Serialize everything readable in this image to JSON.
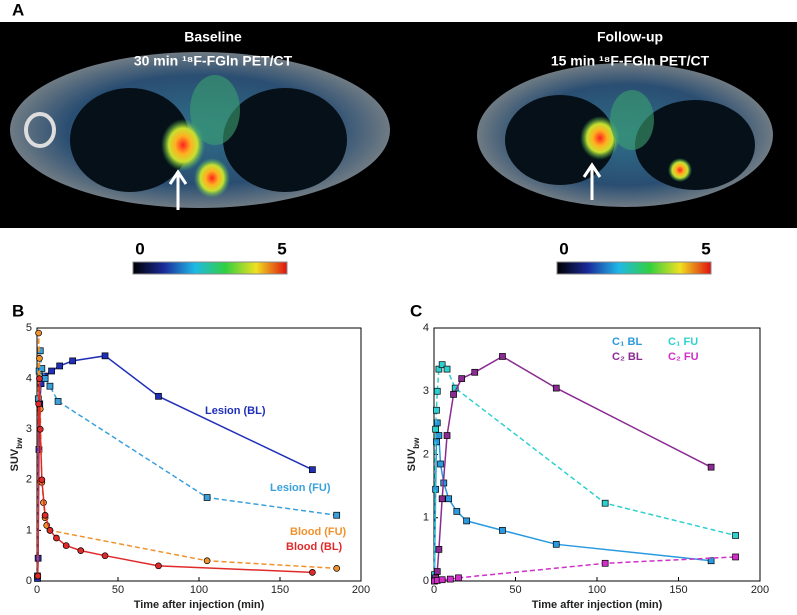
{
  "panel_a": {
    "label": "A",
    "images": [
      {
        "title": "Baseline",
        "subtitle": "30 min ¹⁸F-FGln PET/CT",
        "colorbar_min": "0",
        "colorbar_max": "5"
      },
      {
        "title": "Follow-up",
        "subtitle": "15 min ¹⁸F-FGln PET/CT",
        "colorbar_min": "0",
        "colorbar_max": "5"
      }
    ]
  },
  "chart_data": [
    {
      "type": "line",
      "panel_label": "B",
      "x_label": "Time after injection (min)",
      "y_label": "SUV",
      "y_label_sub": "bw",
      "xlim": [
        0,
        200
      ],
      "ylim": [
        0,
        5
      ],
      "xticks": [
        0,
        50,
        100,
        150,
        200
      ],
      "yticks": [
        0,
        1,
        2,
        3,
        4,
        5
      ],
      "series": [
        {
          "name": "Lesion (BL)",
          "color": "#1f2fb8",
          "line": "solid",
          "marker": "square",
          "x": [
            0.3,
            0.7,
            1.2,
            1.7,
            2.5,
            5,
            9,
            14,
            22,
            42,
            75,
            170
          ],
          "values": [
            0.05,
            0.45,
            2.6,
            3.5,
            3.9,
            4.05,
            4.15,
            4.25,
            4.35,
            4.45,
            3.65,
            2.2
          ]
        },
        {
          "name": "Lesion (FU)",
          "color": "#3aa0dc",
          "line": "dashed",
          "marker": "square",
          "x": [
            0.3,
            0.8,
            1.3,
            2,
            3,
            5,
            8,
            13,
            105,
            185
          ],
          "values": [
            0.1,
            3.6,
            4.15,
            4.55,
            4.2,
            4.0,
            3.85,
            3.55,
            1.65,
            1.3
          ]
        },
        {
          "name": "Blood (FU)",
          "color": "#f0922c",
          "line": "dashed",
          "marker": "circle",
          "x": [
            0.5,
            1,
            1.5,
            2,
            3,
            4,
            5,
            6,
            8,
            105,
            185
          ],
          "values": [
            0.1,
            4.9,
            4.4,
            3.4,
            1.95,
            1.55,
            1.25,
            1.1,
            1.0,
            0.4,
            0.25
          ]
        },
        {
          "name": "Blood (BL)",
          "color": "#e02a2a",
          "line": "solid",
          "marker": "circle",
          "x": [
            0.5,
            1,
            1.5,
            2,
            3,
            5,
            8,
            12,
            18,
            27,
            42,
            75,
            170
          ],
          "values": [
            0.1,
            3.5,
            4.0,
            3.0,
            2.0,
            1.3,
            1.0,
            0.85,
            0.7,
            0.6,
            0.5,
            0.3,
            0.17
          ]
        }
      ]
    },
    {
      "type": "line",
      "panel_label": "C",
      "x_label": "Time after injection (min)",
      "y_label": "SUV",
      "y_label_sub": "bw",
      "xlim": [
        0,
        200
      ],
      "ylim": [
        0,
        4
      ],
      "xticks": [
        0,
        50,
        100,
        150,
        200
      ],
      "yticks": [
        0,
        1,
        2,
        3,
        4
      ],
      "series": [
        {
          "name": "C₁ BL",
          "color": "#2a9ae0",
          "line": "solid",
          "marker": "square",
          "x": [
            0.3,
            1,
            1.5,
            2,
            3,
            4,
            6,
            9,
            14,
            20,
            42,
            75,
            170
          ],
          "values": [
            0.05,
            1.45,
            2.2,
            2.5,
            2.3,
            1.85,
            1.55,
            1.3,
            1.1,
            0.95,
            0.8,
            0.58,
            0.32
          ]
        },
        {
          "name": "C₁ FU",
          "color": "#2fd0d0",
          "line": "dashed",
          "marker": "square",
          "x": [
            0.3,
            1,
            1.5,
            2,
            3,
            5,
            8,
            13,
            105,
            185
          ],
          "values": [
            0.1,
            2.4,
            2.7,
            3.0,
            3.35,
            3.42,
            3.35,
            3.05,
            1.23,
            0.72
          ]
        },
        {
          "name": "C₂ BL",
          "color": "#8b2a92",
          "line": "solid",
          "marker": "square",
          "x": [
            0.3,
            1,
            2,
            3,
            5,
            8,
            12,
            17,
            25,
            42,
            75,
            170
          ],
          "values": [
            0,
            0.05,
            0.15,
            0.5,
            1.3,
            2.3,
            2.95,
            3.2,
            3.3,
            3.55,
            3.05,
            1.8
          ]
        },
        {
          "name": "C₂ FU",
          "color": "#d030c8",
          "line": "dashed",
          "marker": "square",
          "x": [
            0.3,
            2,
            5,
            10,
            15,
            105,
            185
          ],
          "values": [
            0,
            0.01,
            0.02,
            0.03,
            0.05,
            0.28,
            0.38
          ]
        }
      ]
    }
  ]
}
